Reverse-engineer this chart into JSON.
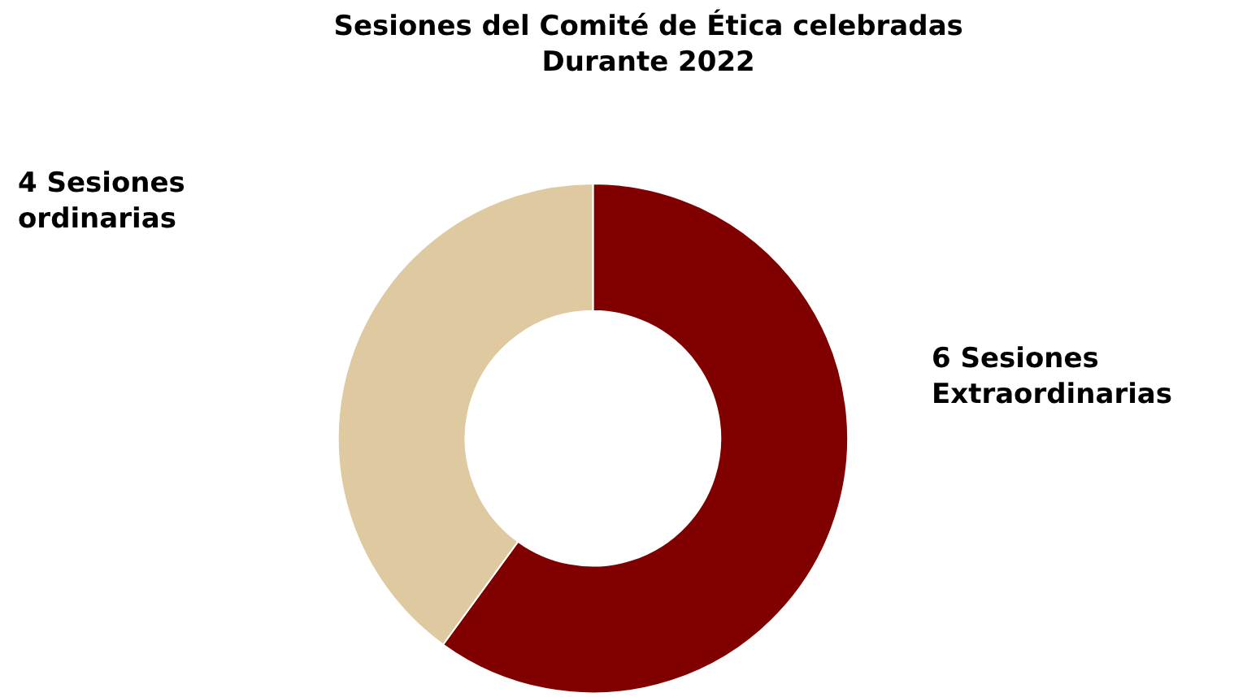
{
  "chart_data": {
    "type": "donut",
    "title": "Sesiones del Comité de Ética celebradas\nDurante 2022",
    "categories": [
      "6 Sesiones Extraordinarias",
      "4 Sesiones ordinarias"
    ],
    "values": [
      6,
      4
    ],
    "colors": [
      "#800000",
      "#dec9a0"
    ],
    "legend": false
  }
}
